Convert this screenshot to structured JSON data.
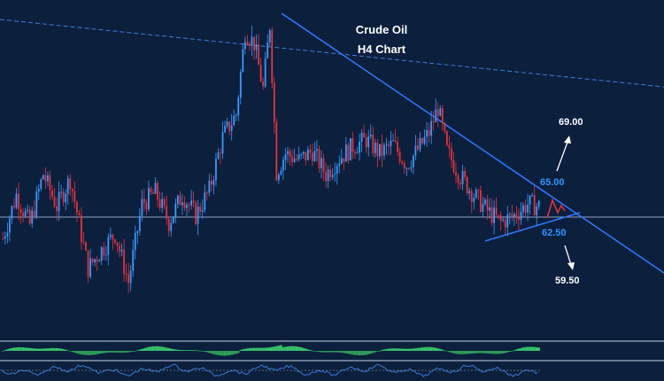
{
  "chart_data": {
    "type": "candlestick",
    "title": "Crude Oil",
    "subtitle": "H4 Chart",
    "annotations": {
      "resistance": "65.00",
      "support": "62.50",
      "upside_target": "69.00",
      "downside_target": "59.50"
    },
    "y_range": [
      58,
      72
    ],
    "bars": 240,
    "colors": {
      "background": "#0c1f3d",
      "bull": "#3d9bff",
      "bear": "#e8343d",
      "trendline": "#2f7bff",
      "level_line": "#8fa3c2",
      "label_blue": "#2f96ff",
      "label_white": "#ffffff",
      "osc_green": "#37c26b",
      "osc_line": "#3a78d6"
    },
    "series_path": [
      [
        0,
        62.2
      ],
      [
        6,
        64.1
      ],
      [
        12,
        62.8
      ],
      [
        18,
        65.0
      ],
      [
        24,
        63.6
      ],
      [
        30,
        64.8
      ],
      [
        38,
        60.9
      ],
      [
        44,
        61.7
      ],
      [
        50,
        62.4
      ],
      [
        56,
        60.3
      ],
      [
        62,
        63.7
      ],
      [
        68,
        64.2
      ],
      [
        74,
        62.9
      ],
      [
        80,
        64.1
      ],
      [
        86,
        63.2
      ],
      [
        92,
        64.3
      ],
      [
        98,
        66.6
      ],
      [
        104,
        67.6
      ],
      [
        108,
        71.2
      ],
      [
        112,
        70.7
      ],
      [
        116,
        68.7
      ],
      [
        119,
        71.5
      ],
      [
        122,
        65.1
      ],
      [
        126,
        65.9
      ],
      [
        132,
        65.6
      ],
      [
        138,
        66.0
      ],
      [
        144,
        65.0
      ],
      [
        150,
        65.7
      ],
      [
        156,
        66.2
      ],
      [
        162,
        66.5
      ],
      [
        168,
        65.9
      ],
      [
        174,
        66.3
      ],
      [
        180,
        65.4
      ],
      [
        186,
        66.2
      ],
      [
        190,
        66.8
      ],
      [
        194,
        67.9
      ],
      [
        198,
        66.0
      ],
      [
        204,
        64.9
      ],
      [
        210,
        64.1
      ],
      [
        216,
        63.4
      ],
      [
        222,
        62.9
      ],
      [
        228,
        63.2
      ],
      [
        234,
        63.7
      ],
      [
        239,
        63.6
      ]
    ]
  }
}
